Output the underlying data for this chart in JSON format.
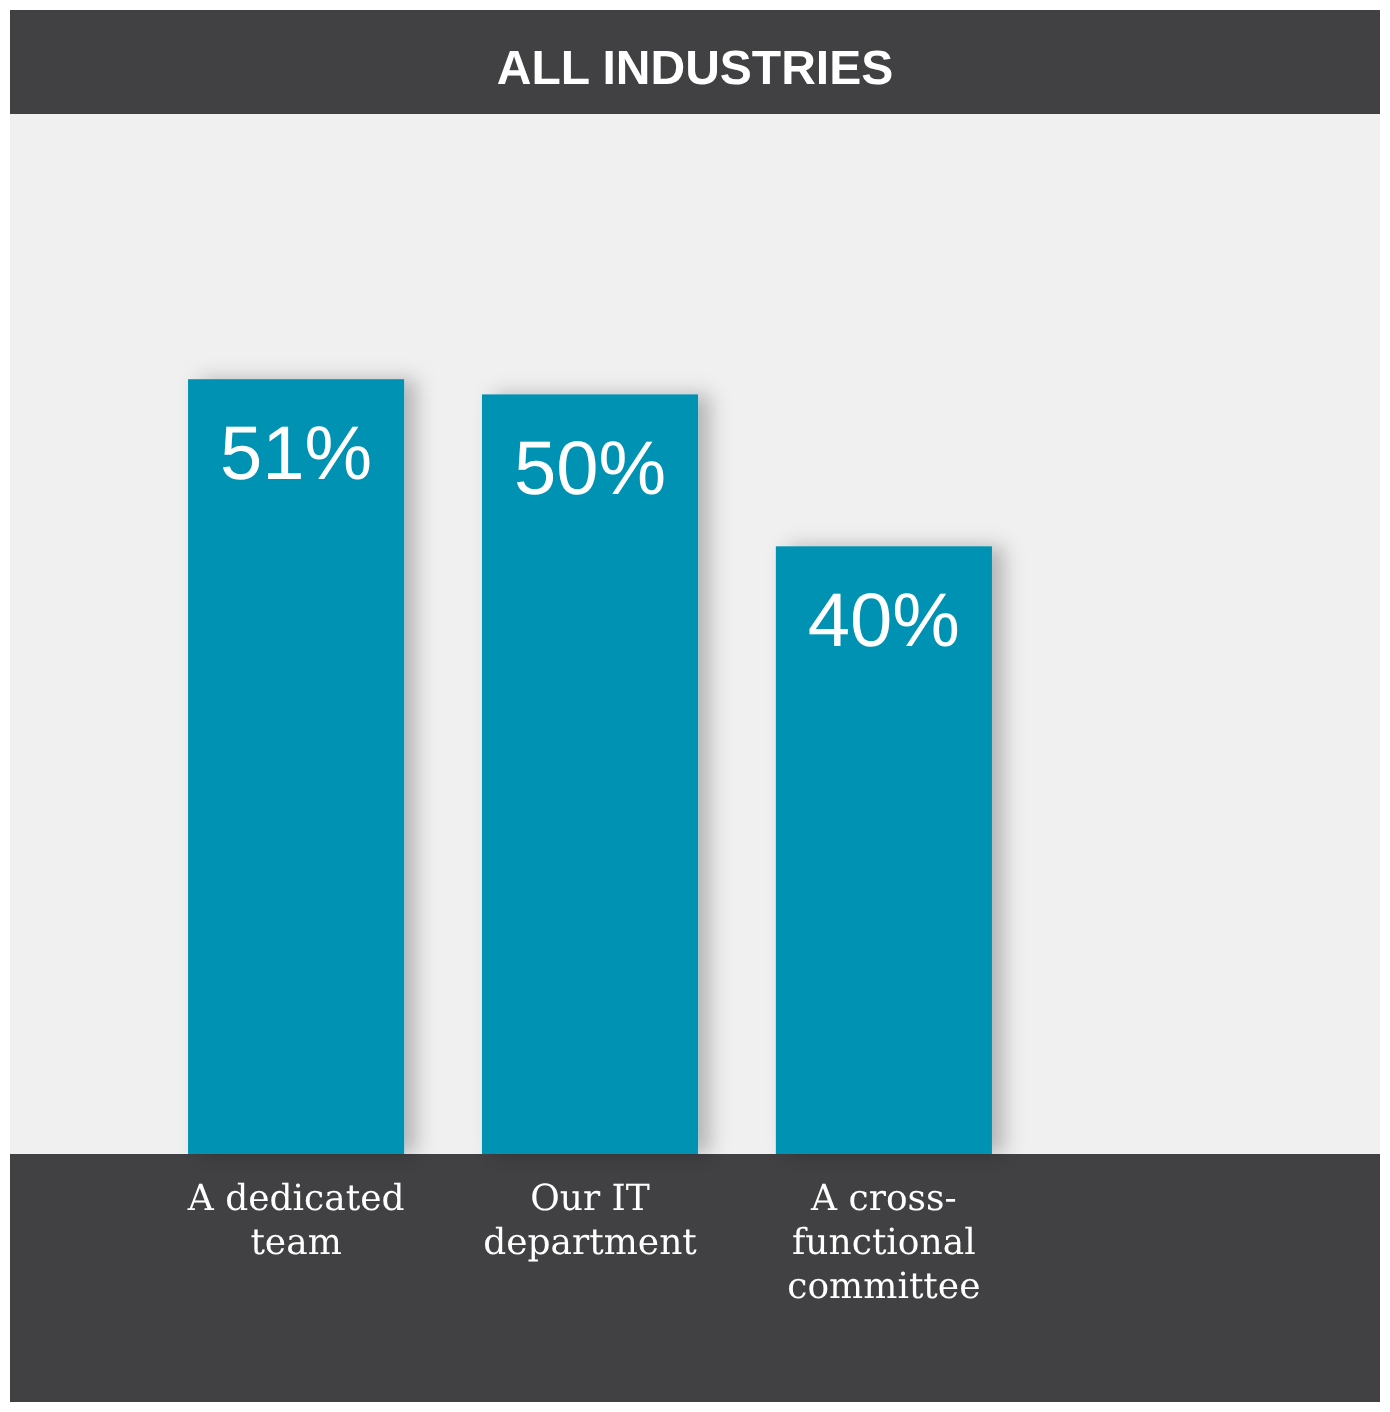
{
  "chart_data": {
    "type": "bar",
    "title": "ALL INDUSTRIES",
    "categories": [
      "A dedicated team",
      "Our IT department",
      "A cross-functional committee"
    ],
    "values": [
      51,
      50,
      40
    ],
    "value_labels": [
      "51%",
      "50%",
      "40%"
    ],
    "color": "#0092b3"
  }
}
